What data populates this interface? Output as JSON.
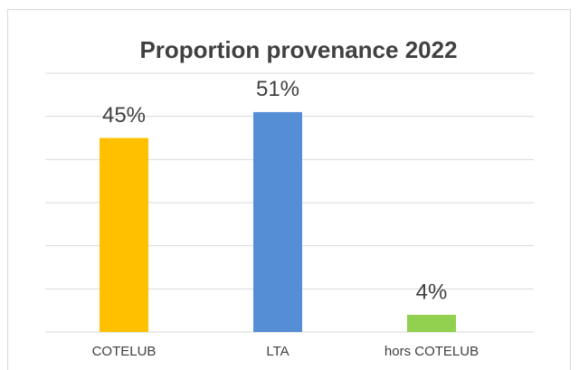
{
  "chart_data": {
    "type": "bar",
    "title": "Proportion provenance 2022",
    "categories": [
      "COTELUB",
      "LTA",
      "hors COTELUB"
    ],
    "values": [
      45,
      51,
      4
    ],
    "value_labels": [
      "45%",
      "51%",
      "4%"
    ],
    "colors": [
      "#ffc000",
      "#558ed5",
      "#92d050"
    ],
    "ylim": [
      0,
      60
    ],
    "yticks": [
      0,
      10,
      20,
      30,
      40,
      50,
      60
    ],
    "ytick_labels": false,
    "grid": true
  }
}
